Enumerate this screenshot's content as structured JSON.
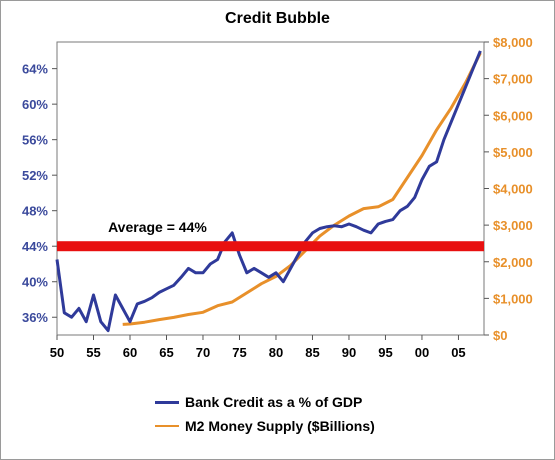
{
  "chart_data": {
    "type": "line",
    "title": "Credit Bubble",
    "x_tick_labels": [
      "50",
      "55",
      "60",
      "65",
      "70",
      "75",
      "80",
      "85",
      "90",
      "95",
      "00",
      "05"
    ],
    "left_ticks": [
      "36%",
      "40%",
      "44%",
      "48%",
      "52%",
      "56%",
      "60%",
      "64%"
    ],
    "left_tick_values": [
      36,
      40,
      44,
      48,
      52,
      56,
      60,
      64
    ],
    "right_ticks": [
      "$0",
      "$1,000",
      "$2,000",
      "$3,000",
      "$4,000",
      "$5,000",
      "$6,000",
      "$7,000",
      "$8,000"
    ],
    "right_tick_values": [
      0,
      1000,
      2000,
      3000,
      4000,
      5000,
      6000,
      7000,
      8000
    ],
    "xlim": [
      1950,
      2008.5
    ],
    "ylim_left": [
      34,
      67
    ],
    "ylim_right": [
      0,
      8000
    ],
    "average_line": {
      "value": 44,
      "label": "Average = 44%",
      "color": "#e81010"
    },
    "series": [
      {
        "name": "Bank Credit as a % of GDP",
        "axis": "left",
        "color": "#2f3a9a",
        "x": [
          1950,
          1951,
          1952,
          1953,
          1954,
          1955,
          1956,
          1957,
          1958,
          1959,
          1960,
          1961,
          1962,
          1963,
          1964,
          1965,
          1966,
          1967,
          1968,
          1969,
          1970,
          1971,
          1972,
          1973,
          1974,
          1975,
          1976,
          1977,
          1978,
          1979,
          1980,
          1981,
          1982,
          1983,
          1984,
          1985,
          1986,
          1987,
          1988,
          1989,
          1990,
          1991,
          1992,
          1993,
          1994,
          1995,
          1996,
          1997,
          1998,
          1999,
          2000,
          2001,
          2002,
          2003,
          2004,
          2005,
          2006,
          2007,
          2008
        ],
        "values": [
          42.5,
          36.5,
          36,
          37,
          35.5,
          38.5,
          35.5,
          34.5,
          38.5,
          37,
          35.5,
          37.5,
          37.8,
          38.2,
          38.8,
          39.2,
          39.6,
          40.5,
          41.5,
          41,
          41,
          42,
          42.5,
          44.5,
          45.5,
          43,
          41,
          41.5,
          41,
          40.5,
          41,
          40,
          41.5,
          43,
          44.5,
          45.5,
          46,
          46.2,
          46.3,
          46.2,
          46.5,
          46.2,
          45.8,
          45.5,
          46.5,
          46.8,
          47,
          48,
          48.5,
          49.5,
          51.5,
          53,
          53.5,
          56,
          58,
          60,
          62,
          64,
          66
        ]
      },
      {
        "name": "M2 Money Supply ($Billions)",
        "axis": "right",
        "color": "#e8902a",
        "x": [
          1959,
          1960,
          1962,
          1964,
          1966,
          1968,
          1970,
          1972,
          1974,
          1976,
          1978,
          1980,
          1982,
          1984,
          1986,
          1988,
          1990,
          1992,
          1994,
          1996,
          1998,
          2000,
          2002,
          2004,
          2006,
          2007,
          2008
        ],
        "values": [
          290,
          300,
          350,
          420,
          480,
          560,
          620,
          800,
          900,
          1150,
          1400,
          1600,
          1900,
          2300,
          2700,
          3000,
          3250,
          3450,
          3500,
          3700,
          4300,
          4900,
          5600,
          6200,
          6900,
          7300,
          7700
        ]
      }
    ]
  }
}
